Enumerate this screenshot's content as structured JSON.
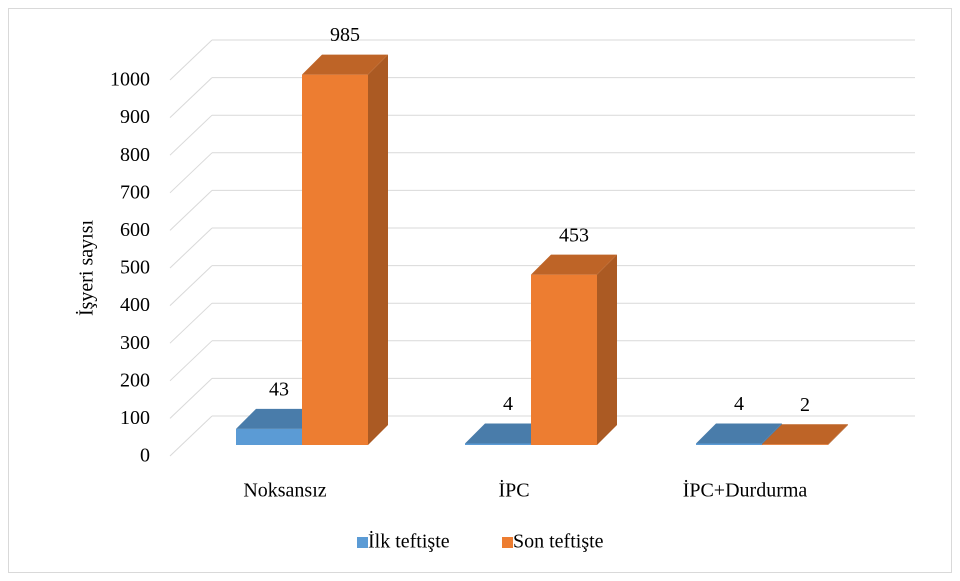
{
  "chart_data": {
    "type": "bar3d",
    "y_label": "İşyeri sayısı",
    "categories": [
      "Noksansız",
      "İPC",
      "İPC+Durdurma"
    ],
    "series": [
      {
        "name": "İlk teftişte",
        "color": "#5b9bd5",
        "values": [
          43,
          4,
          4
        ]
      },
      {
        "name": "Son teftişte",
        "color": "#ed7d31",
        "values": [
          985,
          453,
          2
        ]
      }
    ],
    "ylim": [
      0,
      1000
    ],
    "yticks": [
      0,
      100,
      200,
      300,
      400,
      500,
      600,
      700,
      800,
      900,
      1000
    ],
    "grid": true,
    "legend": "bottom"
  }
}
